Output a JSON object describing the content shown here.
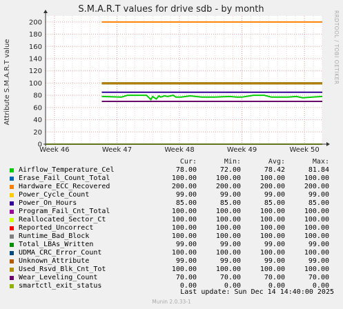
{
  "chart_data": {
    "type": "line",
    "title": "S.M.A.R.T values for drive sdb - by month",
    "ylabel": "Attribute S.M.A.R.T value",
    "xlabel": "",
    "ylim": [
      0,
      210
    ],
    "yticks": [
      0,
      20,
      40,
      60,
      80,
      100,
      120,
      140,
      160,
      180,
      200
    ],
    "xrange": [
      0,
      31
    ],
    "xticks": [
      {
        "label": "Week 46",
        "x": 1
      },
      {
        "label": "Week 47",
        "x": 8
      },
      {
        "label": "Week 48",
        "x": 15
      },
      {
        "label": "Week 49",
        "x": 22
      },
      {
        "label": "Week 50",
        "x": 29
      }
    ],
    "data_start": 6.3,
    "grid": true,
    "legend_position": "bottom",
    "series": [
      {
        "name": "Airflow_Temperature_Cel",
        "color": "#00cc00",
        "cur": "78.00",
        "min": "72.00",
        "avg": "78.42",
        "max": "81.84",
        "points": [
          [
            6.3,
            78
          ],
          [
            8.5,
            77
          ],
          [
            9.2,
            80
          ],
          [
            11.3,
            80
          ],
          [
            11.6,
            76
          ],
          [
            11.8,
            73
          ],
          [
            12.0,
            78
          ],
          [
            12.2,
            76
          ],
          [
            12.4,
            74
          ],
          [
            12.7,
            79
          ],
          [
            12.9,
            77
          ],
          [
            13.3,
            79
          ],
          [
            13.7,
            78
          ],
          [
            14.3,
            80
          ],
          [
            14.6,
            77
          ],
          [
            15.2,
            77
          ],
          [
            16.2,
            79
          ],
          [
            17.5,
            77
          ],
          [
            19,
            77
          ],
          [
            20.6,
            78
          ],
          [
            21.4,
            77
          ],
          [
            22,
            77
          ],
          [
            23.3,
            80
          ],
          [
            24.5,
            80
          ],
          [
            25.3,
            77
          ],
          [
            27.2,
            77
          ],
          [
            28.1,
            78
          ],
          [
            28.8,
            76
          ],
          [
            29.9,
            77
          ],
          [
            31,
            78
          ]
        ]
      },
      {
        "name": "Erase_Fail_Count_Total",
        "color": "#0066b3",
        "cur": "100.00",
        "min": "100.00",
        "avg": "100.00",
        "max": "100.00",
        "points": [
          [
            6.3,
            100
          ],
          [
            31,
            100
          ]
        ]
      },
      {
        "name": "Hardware_ECC_Recovered",
        "color": "#ff8000",
        "cur": "200.00",
        "min": "200.00",
        "avg": "200.00",
        "max": "200.00",
        "points": [
          [
            6.3,
            200
          ],
          [
            31,
            200
          ]
        ]
      },
      {
        "name": "Power_Cycle_Count",
        "color": "#ffcc00",
        "cur": "99.00",
        "min": "99.00",
        "avg": "99.00",
        "max": "99.00",
        "points": [
          [
            6.3,
            99
          ],
          [
            31,
            99
          ]
        ]
      },
      {
        "name": "Power_On_Hours",
        "color": "#330099",
        "cur": "85.00",
        "min": "85.00",
        "avg": "85.00",
        "max": "85.00",
        "points": [
          [
            6.3,
            85
          ],
          [
            31,
            85
          ]
        ]
      },
      {
        "name": "Program_Fail_Cnt_Total",
        "color": "#990099",
        "cur": "100.00",
        "min": "100.00",
        "avg": "100.00",
        "max": "100.00",
        "points": [
          [
            6.3,
            100
          ],
          [
            31,
            100
          ]
        ]
      },
      {
        "name": "Reallocated_Sector_Ct",
        "color": "#ccff00",
        "cur": "100.00",
        "min": "100.00",
        "avg": "100.00",
        "max": "100.00",
        "points": [
          [
            6.3,
            100
          ],
          [
            31,
            100
          ]
        ]
      },
      {
        "name": "Reported_Uncorrect",
        "color": "#ff0000",
        "cur": "100.00",
        "min": "100.00",
        "avg": "100.00",
        "max": "100.00",
        "points": [
          [
            6.3,
            100
          ],
          [
            31,
            100
          ]
        ]
      },
      {
        "name": "Runtime_Bad_Block",
        "color": "#808080",
        "cur": "100.00",
        "min": "100.00",
        "avg": "100.00",
        "max": "100.00",
        "points": [
          [
            6.3,
            100
          ],
          [
            31,
            100
          ]
        ]
      },
      {
        "name": "Total_LBAs_Written",
        "color": "#008f00",
        "cur": "99.00",
        "min": "99.00",
        "avg": "99.00",
        "max": "99.00",
        "points": [
          [
            6.3,
            99
          ],
          [
            31,
            99
          ]
        ]
      },
      {
        "name": "UDMA_CRC_Error_Count",
        "color": "#00487d",
        "cur": "100.00",
        "min": "100.00",
        "avg": "100.00",
        "max": "100.00",
        "points": [
          [
            6.3,
            100
          ],
          [
            31,
            100
          ]
        ]
      },
      {
        "name": "Unknown_Attribute",
        "color": "#b35a00",
        "cur": "99.00",
        "min": "99.00",
        "avg": "99.00",
        "max": "99.00",
        "points": [
          [
            6.3,
            99
          ],
          [
            31,
            99
          ]
        ]
      },
      {
        "name": "Used_Rsvd_Blk_Cnt_Tot",
        "color": "#b38f00",
        "cur": "100.00",
        "min": "100.00",
        "avg": "100.00",
        "max": "100.00",
        "points": [
          [
            6.3,
            100
          ],
          [
            31,
            100
          ]
        ]
      },
      {
        "name": "Wear_Leveling_Count",
        "color": "#6b006b",
        "cur": "70.00",
        "min": "70.00",
        "avg": "70.00",
        "max": "70.00",
        "points": [
          [
            6.3,
            70
          ],
          [
            31,
            70
          ]
        ]
      },
      {
        "name": "smartctl_exit_status",
        "color": "#8fb300",
        "cur": "0.00",
        "min": "0.00",
        "avg": "0.00",
        "max": "0.00",
        "points": [
          [
            0,
            0
          ],
          [
            31,
            0
          ]
        ]
      }
    ]
  },
  "legend_header": {
    "cur": "Cur:",
    "min": "Min:",
    "avg": "Avg:",
    "max": "Max:"
  },
  "footer": {
    "last_update": "Last update:  Sun Dec 14 14:40:00 2025",
    "munin_version": "Munin 2.0.33-1",
    "watermark": "RRDTOOL / TOBI OETIKER"
  }
}
